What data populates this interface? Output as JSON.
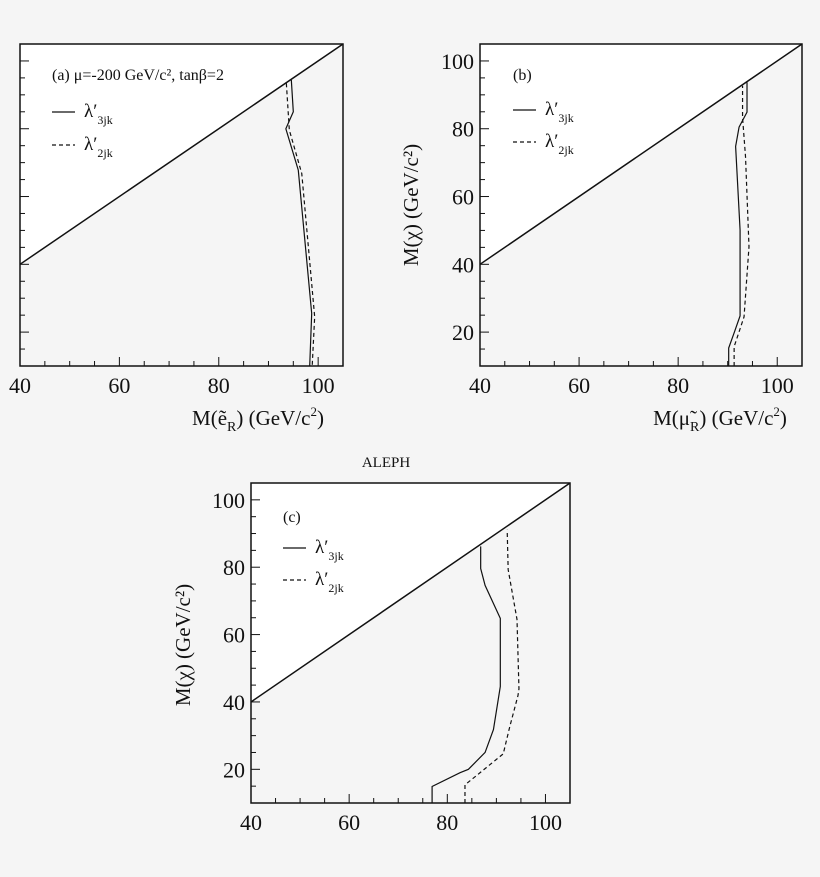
{
  "chart_data": [
    {
      "type": "line",
      "panel": "a",
      "title": "(a) μ=-200 GeV/c², tanβ=2",
      "xlabel": "M(ẽR) (GeV/c²)",
      "xlabel_main": "M(ẽ",
      "xlabel_sub": "R",
      "xlabel_tail": ") (GeV/c",
      "ylabel": "",
      "xlim": [
        40,
        105
      ],
      "ylim": [
        10,
        105
      ],
      "xticks": [
        40,
        60,
        80,
        100
      ],
      "yticks": [],
      "diagonal": [
        [
          40,
          40
        ],
        [
          105,
          105
        ]
      ],
      "series": [
        {
          "name": "λ′3jk",
          "base": "λ′",
          "sub": "3jk",
          "style": "solid",
          "points": [
            [
              94.6,
              94.4
            ],
            [
              95.0,
              85
            ],
            [
              93.5,
              80
            ],
            [
              96,
              67.8
            ],
            [
              98.7,
              25.5
            ],
            [
              98.3,
              10
            ]
          ]
        },
        {
          "name": "λ′2jk",
          "base": "λ′",
          "sub": "2jk",
          "style": "dashed",
          "points": [
            [
              93.6,
              93.4
            ],
            [
              94.2,
              79.6
            ],
            [
              96.7,
              66.8
            ],
            [
              99.3,
              24.5
            ],
            [
              98.8,
              10
            ]
          ]
        }
      ]
    },
    {
      "type": "line",
      "panel": "b",
      "title": "(b)",
      "xlabel": "M(μ̃R) (GeV/c²)",
      "xlabel_main": "M(μ̃",
      "xlabel_sub": "R",
      "xlabel_tail": ") (GeV/c",
      "ylabel": "M(χ) (GeV/c²)",
      "xlim": [
        40,
        105
      ],
      "ylim": [
        10,
        105
      ],
      "xticks": [
        40,
        60,
        80,
        100
      ],
      "yticks": [
        20,
        40,
        60,
        80,
        100
      ],
      "diagonal": [
        [
          40,
          40
        ],
        [
          105,
          105
        ]
      ],
      "series": [
        {
          "name": "λ′3jk",
          "base": "λ′",
          "sub": "3jk",
          "style": "solid",
          "points": [
            [
              90.2,
              10
            ],
            [
              90.2,
              15.3
            ],
            [
              91.4,
              20.2
            ],
            [
              92.5,
              24.8
            ],
            [
              92.5,
              50.1
            ],
            [
              91.6,
              74.8
            ],
            [
              92.3,
              80.5
            ],
            [
              93.9,
              84.9
            ],
            [
              93.9,
              93.7
            ]
          ]
        },
        {
          "name": "λ′2jk",
          "base": "λ′",
          "sub": "2jk",
          "style": "dashed",
          "points": [
            [
              91.3,
              10
            ],
            [
              91.3,
              15.7
            ],
            [
              93.3,
              24.5
            ],
            [
              94.3,
              45.2
            ],
            [
              93.6,
              71.7
            ],
            [
              93,
              83.3
            ],
            [
              93,
              92.7
            ]
          ]
        }
      ]
    },
    {
      "type": "line",
      "panel": "c",
      "title": "(c)",
      "header": "ALEPH",
      "xlabel": "",
      "ylabel": "M(χ) (GeV/c²)",
      "xlim": [
        40,
        105
      ],
      "ylim": [
        10,
        105
      ],
      "xticks": [
        40,
        60,
        80,
        100
      ],
      "yticks": [
        20,
        40,
        60,
        80,
        100
      ],
      "diagonal": [
        [
          40,
          40
        ],
        [
          105,
          105
        ]
      ],
      "series": [
        {
          "name": "λ′3jk",
          "base": "λ′",
          "sub": "3jk",
          "style": "solid",
          "points": [
            [
              76.9,
              10
            ],
            [
              76.9,
              14.9
            ],
            [
              82.6,
              19
            ],
            [
              84.3,
              20
            ],
            [
              87.7,
              25
            ],
            [
              89.4,
              31.8
            ],
            [
              90.8,
              44.6
            ],
            [
              90.8,
              64.8
            ],
            [
              87.7,
              74.6
            ],
            [
              86.8,
              79.6
            ],
            [
              86.8,
              86.2
            ]
          ]
        },
        {
          "name": "λ′2jk",
          "base": "λ′",
          "sub": "2jk",
          "style": "dashed",
          "points": [
            [
              83.6,
              10
            ],
            [
              83.6,
              15.4
            ],
            [
              86,
              18.2
            ],
            [
              91.4,
              24.6
            ],
            [
              92.7,
              32.5
            ],
            [
              94.4,
              41.9
            ],
            [
              94.6,
              43.9
            ],
            [
              94.2,
              64.5
            ],
            [
              92.4,
              79.3
            ],
            [
              92.2,
              91.1
            ]
          ]
        }
      ]
    }
  ]
}
